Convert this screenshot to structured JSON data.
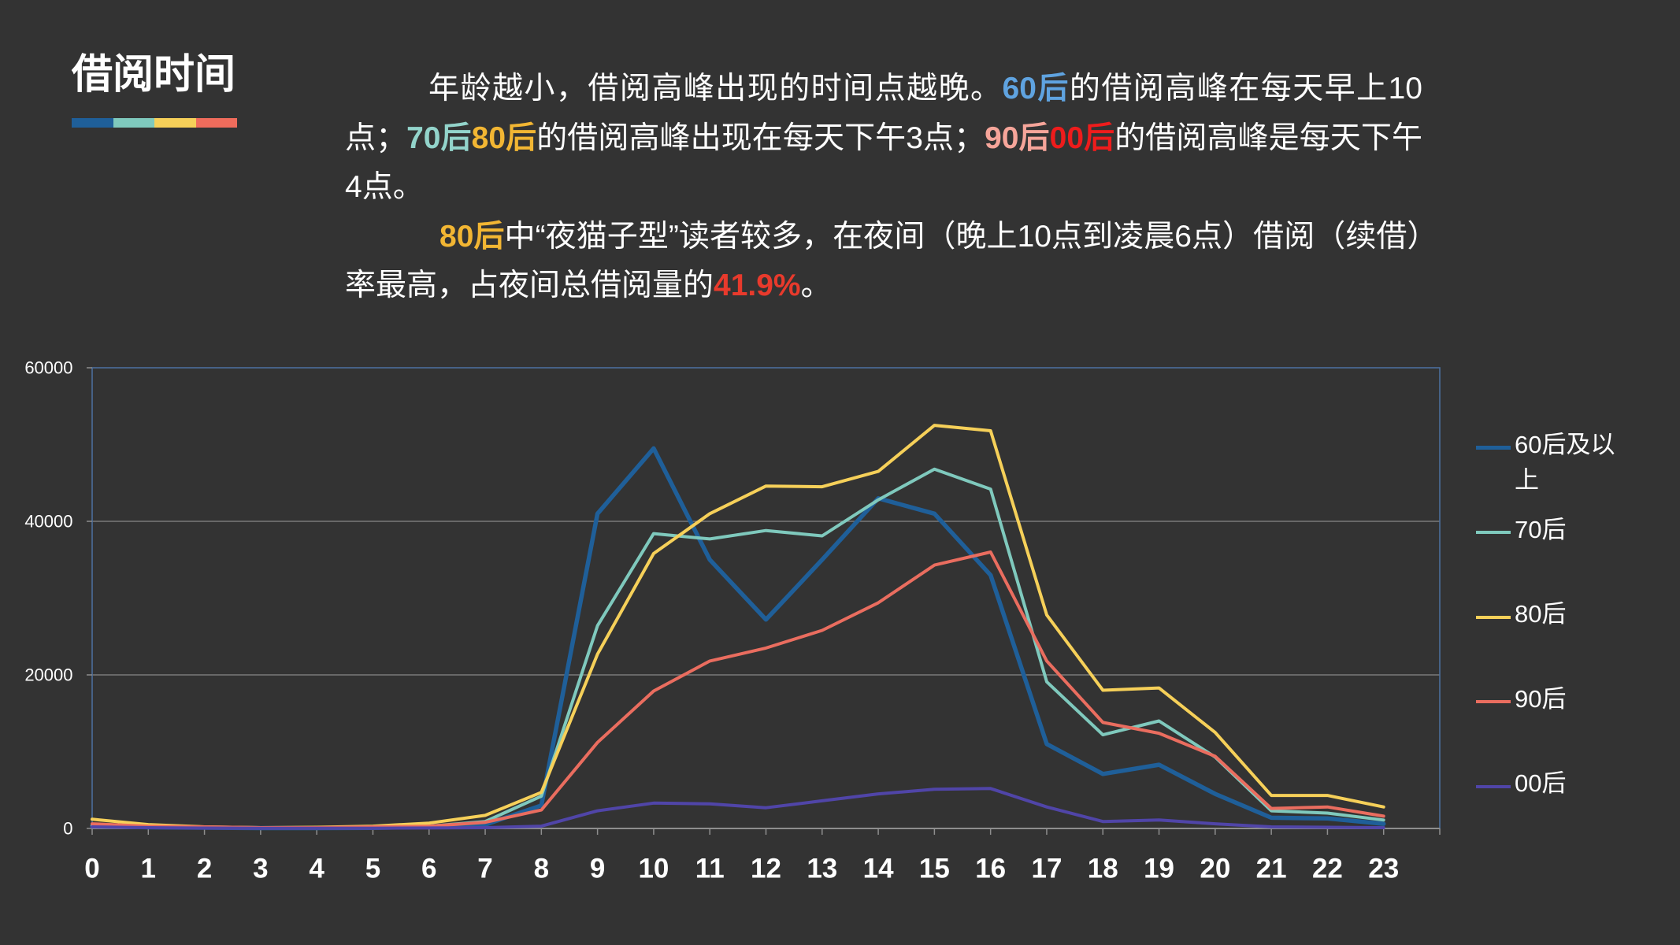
{
  "slide": {
    "title": "借阅时间",
    "accent_bar_colors": [
      "#1f5f99",
      "#7fc9bd",
      "#f6d059",
      "#ef6c5c"
    ]
  },
  "description": {
    "paragraphs": [
      {
        "segments": [
          {
            "text": "年龄越小，借阅高峰出现的时间点越晚。",
            "color": "#ffffff"
          },
          {
            "text": "60后",
            "color": "#5fa3e0"
          },
          {
            "text": "的借阅高峰在每天早上10点；",
            "color": "#ffffff"
          },
          {
            "text": "70后",
            "color": "#93d4cb"
          },
          {
            "text": "80后",
            "color": "#f2b633"
          },
          {
            "text": "的借阅高峰出现在每天下午3点；",
            "color": "#ffffff"
          },
          {
            "text": "90后",
            "color": "#f6a59a"
          },
          {
            "text": "00后",
            "color": "#ee1c1c"
          },
          {
            "text": "的借阅高峰是每天下午4点。",
            "color": "#ffffff"
          }
        ]
      },
      {
        "segments": [
          {
            "text": "80后",
            "color": "#f2b633"
          },
          {
            "text": "中“夜猫子型”读者较多，在夜间（晚上10点到凌晨6点）借阅（续借）率最高，占夜间总借阅量的",
            "color": "#ffffff"
          },
          {
            "text": "41.9%",
            "color": "#e83a2c"
          },
          {
            "text": "。",
            "color": "#ffffff"
          }
        ]
      }
    ]
  },
  "chart_data": {
    "type": "line",
    "categories": [
      "0",
      "1",
      "2",
      "3",
      "4",
      "5",
      "6",
      "7",
      "8",
      "9",
      "10",
      "11",
      "12",
      "13",
      "14",
      "15",
      "16",
      "17",
      "18",
      "19",
      "20",
      "21",
      "22",
      "23"
    ],
    "ylim": [
      0,
      60000
    ],
    "yticks": [
      0,
      20000,
      40000,
      60000
    ],
    "ytick_labels": [
      "0",
      "20000",
      "40000",
      "60000"
    ],
    "grid": "horizontal",
    "legend_position": "right",
    "series": [
      {
        "name": "60后及以上",
        "color": "#1f5f99",
        "values": [
          300,
          150,
          100,
          50,
          50,
          80,
          200,
          500,
          3000,
          41000,
          49500,
          35000,
          27200,
          35000,
          43000,
          41000,
          33000,
          11000,
          7100,
          8300,
          4500,
          1400,
          1300,
          600
        ]
      },
      {
        "name": "70后",
        "color": "#7fc9bd",
        "values": [
          400,
          200,
          150,
          100,
          100,
          200,
          300,
          900,
          4200,
          26400,
          38400,
          37700,
          38800,
          38100,
          42800,
          46800,
          44200,
          19100,
          12200,
          14000,
          9300,
          2300,
          2000,
          1100
        ]
      },
      {
        "name": "80后",
        "color": "#f6d059",
        "values": [
          1200,
          500,
          200,
          100,
          150,
          300,
          700,
          1700,
          4700,
          22700,
          35800,
          41000,
          44600,
          44500,
          46500,
          52500,
          51800,
          27800,
          18000,
          18300,
          12500,
          4300,
          4300,
          2800
        ]
      },
      {
        "name": "90后",
        "color": "#ea6d5f",
        "values": [
          600,
          300,
          200,
          100,
          100,
          200,
          300,
          800,
          2400,
          11200,
          17900,
          21800,
          23500,
          25800,
          29400,
          34300,
          36000,
          21800,
          13800,
          12400,
          9400,
          2600,
          2800,
          1600
        ]
      },
      {
        "name": "00后",
        "color": "#5045a8",
        "values": [
          200,
          100,
          50,
          20,
          20,
          30,
          60,
          100,
          300,
          2300,
          3300,
          3200,
          2700,
          3600,
          4500,
          5100,
          5200,
          2800,
          900,
          1100,
          600,
          200,
          150,
          100
        ]
      }
    ]
  }
}
